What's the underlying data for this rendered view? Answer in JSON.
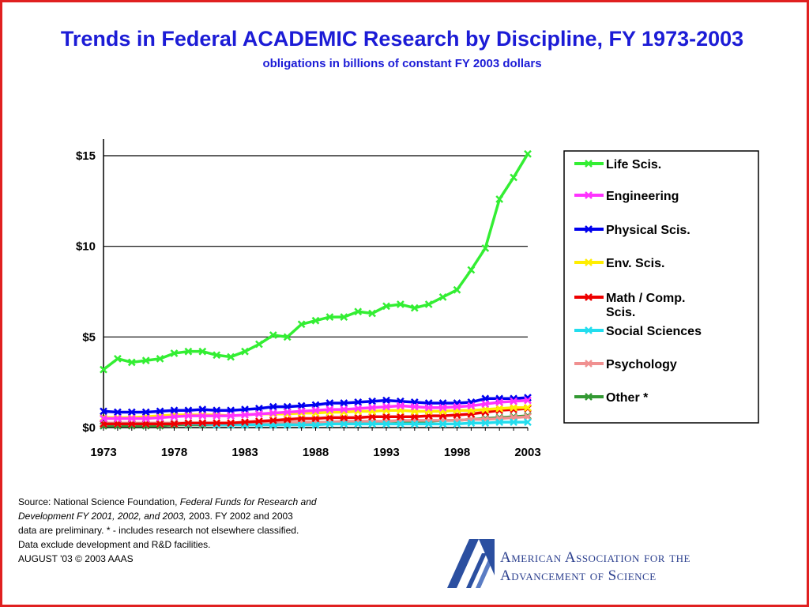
{
  "title": "Trends in Federal ACADEMIC Research by Discipline, FY 1973-2003",
  "subtitle": "obligations in billions of constant FY 2003 dollars",
  "chart_data": {
    "type": "line",
    "title": "Trends in Federal ACADEMIC Research by Discipline, FY 1973-2003",
    "subtitle": "obligations in billions of constant FY 2003 dollars",
    "xlabel": "",
    "ylabel": "",
    "x": [
      1973,
      1974,
      1975,
      1976,
      1977,
      1978,
      1979,
      1980,
      1981,
      1982,
      1983,
      1984,
      1985,
      1986,
      1987,
      1988,
      1989,
      1990,
      1991,
      1992,
      1993,
      1994,
      1995,
      1996,
      1997,
      1998,
      1999,
      2000,
      2001,
      2002,
      2003
    ],
    "x_ticks": [
      "1973",
      "1978",
      "1983",
      "1988",
      "1993",
      "1998",
      "2003"
    ],
    "y_ticks": [
      "$0",
      "$5",
      "$10",
      "$15"
    ],
    "ylim": [
      0,
      16.5
    ],
    "grid": "horizontal",
    "legend_position": "right",
    "series": [
      {
        "name": "Life Scis.",
        "color": "#33ee33",
        "values": [
          3.2,
          3.8,
          3.6,
          3.7,
          3.8,
          4.1,
          4.2,
          4.2,
          4.0,
          3.9,
          4.2,
          4.6,
          5.1,
          5.0,
          5.7,
          5.9,
          6.1,
          6.1,
          6.4,
          6.3,
          6.7,
          6.8,
          6.6,
          6.8,
          7.2,
          7.6,
          8.7,
          9.9,
          12.6,
          13.8,
          15.1
        ]
      },
      {
        "name": "Engineering",
        "color": "#ff33ff",
        "values": [
          0.5,
          0.5,
          0.5,
          0.5,
          0.55,
          0.6,
          0.65,
          0.65,
          0.65,
          0.65,
          0.7,
          0.75,
          0.8,
          0.85,
          0.9,
          0.95,
          1.0,
          1.0,
          1.05,
          1.1,
          1.15,
          1.2,
          1.15,
          1.1,
          1.1,
          1.15,
          1.2,
          1.3,
          1.4,
          1.45,
          1.5
        ]
      },
      {
        "name": "Physical Scis.",
        "color": "#0000ee",
        "values": [
          0.9,
          0.85,
          0.85,
          0.85,
          0.9,
          0.95,
          0.95,
          1.0,
          0.95,
          0.95,
          1.0,
          1.05,
          1.15,
          1.15,
          1.2,
          1.25,
          1.35,
          1.35,
          1.4,
          1.45,
          1.5,
          1.45,
          1.4,
          1.35,
          1.35,
          1.35,
          1.4,
          1.6,
          1.6,
          1.6,
          1.65
        ]
      },
      {
        "name": "Env. Scis.",
        "color": "#ffee00",
        "values": [
          0.55,
          0.55,
          0.55,
          0.6,
          0.65,
          0.7,
          0.7,
          0.7,
          0.7,
          0.65,
          0.7,
          0.75,
          0.75,
          0.75,
          0.8,
          0.8,
          0.85,
          0.85,
          0.9,
          0.9,
          0.95,
          0.95,
          0.9,
          0.9,
          0.9,
          0.95,
          0.95,
          1.0,
          1.05,
          1.1,
          1.1
        ]
      },
      {
        "name": "Math / Comp. Scis.",
        "color": "#ee0000",
        "values": [
          0.2,
          0.2,
          0.2,
          0.2,
          0.2,
          0.2,
          0.25,
          0.25,
          0.25,
          0.25,
          0.3,
          0.35,
          0.4,
          0.45,
          0.5,
          0.5,
          0.55,
          0.55,
          0.55,
          0.6,
          0.6,
          0.6,
          0.6,
          0.65,
          0.65,
          0.7,
          0.75,
          0.85,
          0.95,
          1.0,
          1.05
        ]
      },
      {
        "name": "Social Sciences",
        "color": "#22ddee",
        "values": [
          0.2,
          0.2,
          0.2,
          0.2,
          0.2,
          0.2,
          0.2,
          0.2,
          0.15,
          0.15,
          0.15,
          0.15,
          0.15,
          0.15,
          0.15,
          0.15,
          0.2,
          0.2,
          0.2,
          0.2,
          0.2,
          0.2,
          0.2,
          0.2,
          0.2,
          0.2,
          0.25,
          0.25,
          0.3,
          0.3,
          0.3
        ]
      },
      {
        "name": "Psychology",
        "color": "#f09090",
        "values": [
          0.25,
          0.25,
          0.25,
          0.25,
          0.25,
          0.25,
          0.25,
          0.25,
          0.25,
          0.25,
          0.25,
          0.25,
          0.3,
          0.3,
          0.3,
          0.3,
          0.3,
          0.35,
          0.35,
          0.35,
          0.35,
          0.4,
          0.4,
          0.4,
          0.4,
          0.4,
          0.45,
          0.45,
          0.5,
          0.55,
          0.6
        ]
      },
      {
        "name": "Other *",
        "color": "#339933",
        "values": [
          0.1,
          0.1,
          0.1,
          0.1,
          0.1,
          0.15,
          0.15,
          0.15,
          0.15,
          0.15,
          0.2,
          0.2,
          0.2,
          0.25,
          0.25,
          0.25,
          0.3,
          0.3,
          0.3,
          0.3,
          0.35,
          0.35,
          0.35,
          0.35,
          0.4,
          0.4,
          0.45,
          0.5,
          0.55,
          0.6,
          0.65
        ]
      }
    ]
  },
  "legend": {
    "items": [
      {
        "label": "Life Scis.",
        "color": "#33ee33"
      },
      {
        "label": "Engineering",
        "color": "#ff33ff"
      },
      {
        "label": "Physical Scis.",
        "color": "#0000ee"
      },
      {
        "label": "Env. Scis.",
        "color": "#ffee00"
      },
      {
        "label": "Math / Comp.",
        "label2": "Scis.",
        "color": "#ee0000"
      },
      {
        "label": "Social Sciences",
        "color": "#22ddee"
      },
      {
        "label": "Psychology",
        "color": "#f09090"
      },
      {
        "label": "Other *",
        "color": "#339933"
      }
    ]
  },
  "source": {
    "line1_prefix": "Source: National Science Foundation, ",
    "line1_italic": "Federal Funds for Research and",
    "line2_italic": "Development  FY 2001, 2002, and 2003,",
    "line2_rest": "  2003.  FY 2002 and 2003",
    "line3": "data are preliminary.  * - includes research not elsewhere classified.",
    "line4": "Data exclude development and R&D facilities.",
    "line5": "AUGUST '03 © 2003 AAAS"
  },
  "branding": {
    "line1": "American Association for the",
    "line2": "Advancement of Science",
    "logo_color": "#2b4fa0"
  },
  "frame_color": "#e02020",
  "title_color": "#1c1cd6"
}
